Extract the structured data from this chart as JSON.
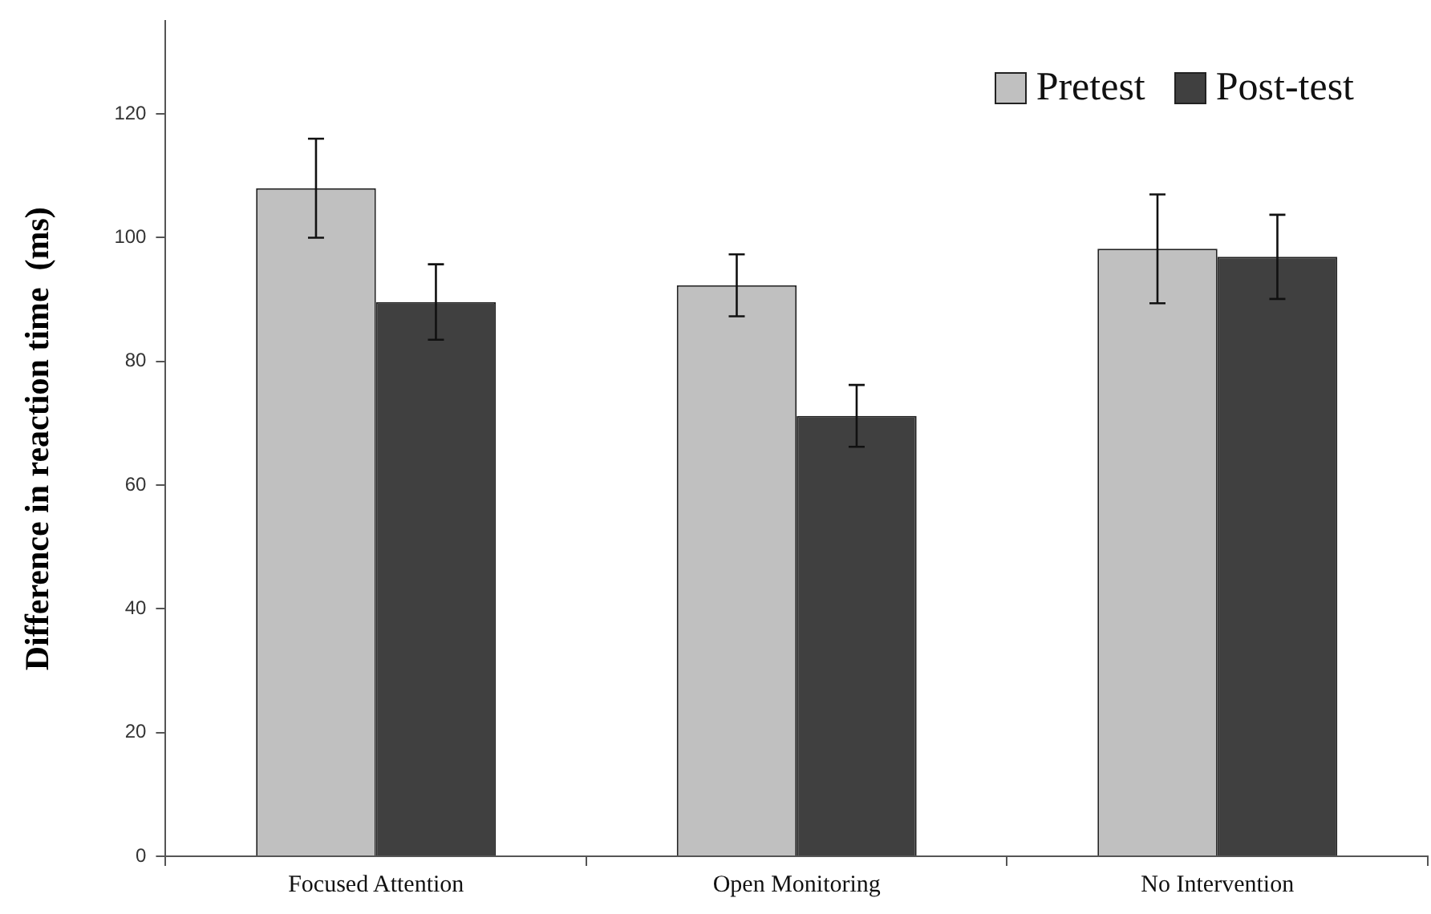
{
  "chart_data": {
    "type": "bar",
    "ylabel": "Difference in reaction time  (ms)",
    "categories": [
      "Focused Attention",
      "Open Monitoring",
      "No Intervention"
    ],
    "series": [
      {
        "name": "Pretest",
        "color": "#c0c0c0",
        "values": [
          108,
          92.3,
          98.2
        ],
        "errors": [
          8,
          5,
          8.8
        ]
      },
      {
        "name": "Post-test",
        "color": "#404040",
        "values": [
          89.6,
          71.2,
          96.9
        ],
        "errors": [
          6.1,
          5,
          6.8
        ]
      }
    ],
    "ylim": [
      0,
      135
    ],
    "yticks": [
      0,
      20,
      40,
      60,
      80,
      100,
      120
    ],
    "grid": false,
    "legend": "top right"
  }
}
